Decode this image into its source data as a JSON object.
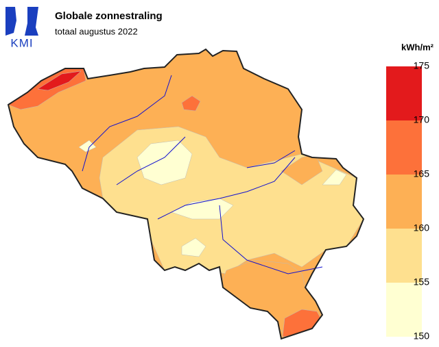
{
  "logo": {
    "text": "KMI"
  },
  "header": {
    "title": "Globale zonnestraling",
    "subtitle": "totaal augustus 2022"
  },
  "legend": {
    "unit": "kWh/m²",
    "ticks": [
      150,
      155,
      160,
      165,
      170,
      175
    ],
    "colors": [
      "#ffffd2",
      "#fee08f",
      "#fdb055",
      "#fd713a",
      "#e31a1c"
    ]
  }
}
